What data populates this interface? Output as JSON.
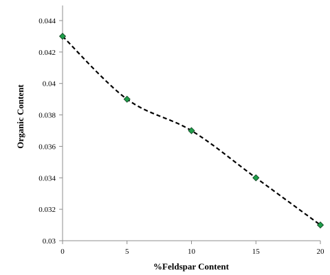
{
  "chart_data": {
    "type": "line",
    "xlabel": "%Feldspar Content",
    "ylabel": "Organic Content",
    "xlim": [
      0,
      20
    ],
    "ylim": [
      0.03,
      0.044
    ],
    "x_ticks": [
      0,
      5,
      10,
      15,
      20
    ],
    "x_tick_labels": [
      "0",
      "5",
      "10",
      "15",
      "20"
    ],
    "y_ticks": [
      0.03,
      0.032,
      0.034,
      0.036,
      0.038,
      0.04,
      0.042,
      0.044
    ],
    "y_tick_labels": [
      "0.03",
      "0.032",
      "0.034",
      "0.036",
      "0.038",
      "0.04",
      "0.042",
      "0.044"
    ],
    "grid": false,
    "line_style": "dashed-smoothed",
    "series": [
      {
        "x": [
          0,
          5,
          10,
          15,
          20
        ],
        "y": [
          0.043,
          0.039,
          0.037,
          0.034,
          0.031
        ],
        "marker": "diamond",
        "marker_color": "#1f9e4a",
        "line_color": "#000000"
      }
    ]
  }
}
